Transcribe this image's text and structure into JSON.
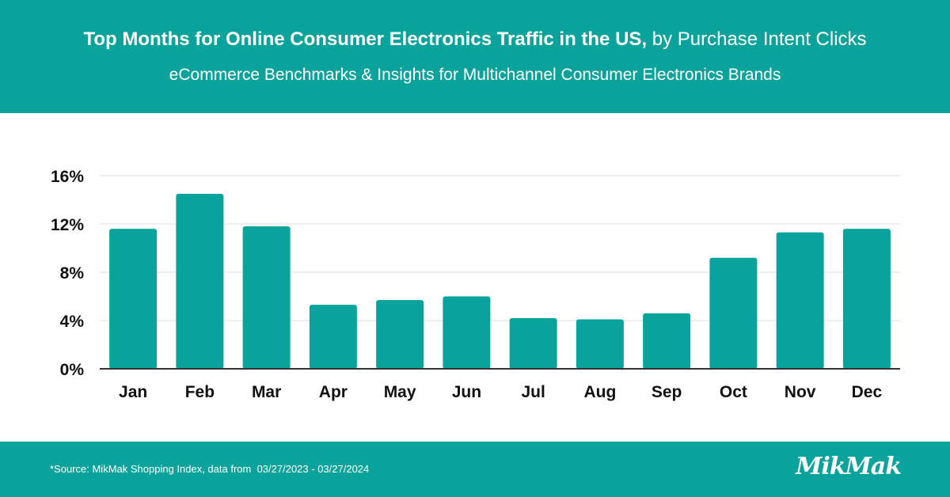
{
  "header": {
    "title_bold": "Top Months for Online Consumer Electronics Traffic in the US,",
    "title_rest": " by Purchase Intent Clicks",
    "subtitle": "eCommerce Benchmarks & Insights for Multichannel Consumer Electronics Brands"
  },
  "footer": {
    "source": "*Source: MikMak Shopping Index, data from  03/27/2023 - 03/27/2024",
    "logo": "MikMak"
  },
  "colors": {
    "brand": "#0aa39c",
    "bar": "#0aa39c",
    "grid": "#dcdcdc",
    "axis": "#333333",
    "text": "#111111"
  },
  "chart_data": {
    "type": "bar",
    "title": "Top Months for Online Consumer Electronics Traffic in the US, by Purchase Intent Clicks",
    "categories": [
      "Jan",
      "Feb",
      "Mar",
      "Apr",
      "May",
      "Jun",
      "Jul",
      "Aug",
      "Sep",
      "Oct",
      "Nov",
      "Dec"
    ],
    "values": [
      11.6,
      14.5,
      11.8,
      5.3,
      5.7,
      6.0,
      4.2,
      4.1,
      4.6,
      9.2,
      11.3,
      11.6
    ],
    "value_format": "percent",
    "ylim": [
      0,
      16
    ],
    "yticks": [
      0,
      4,
      8,
      12,
      16
    ],
    "ytick_labels": [
      "0%",
      "4%",
      "8%",
      "12%",
      "16%"
    ],
    "xlabel": "",
    "ylabel": "",
    "grid": true,
    "legend": "none"
  }
}
